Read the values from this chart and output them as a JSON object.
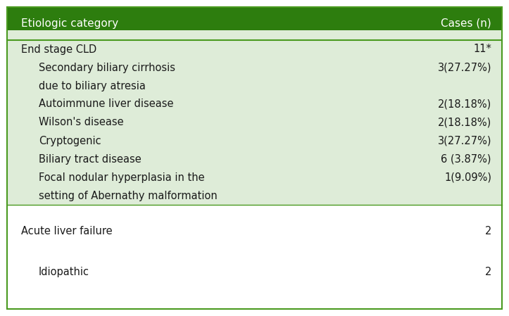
{
  "header_bg": "#2d7d0e",
  "header_text_color": "#ffffff",
  "section1_bg": "#deecd8",
  "section2_bg": "#ffffff",
  "outer_bg": "#ffffff",
  "border_color": "#4a9a20",
  "header_col1": "Etiologic category",
  "header_col2": "Cases (n)",
  "rows_section1": [
    {
      "col1": "End stage CLD",
      "col2": "11*",
      "indent": false
    },
    {
      "col1": "Secondary biliary cirrhosis",
      "col2": "3(27.27%)",
      "indent": true
    },
    {
      "col1": "due to biliary atresia",
      "col2": "",
      "indent": true
    },
    {
      "col1": "Autoimmune liver disease",
      "col2": "2(18.18%)",
      "indent": true
    },
    {
      "col1": "Wilson's disease",
      "col2": "2(18.18%)",
      "indent": true
    },
    {
      "col1": "Cryptogenic",
      "col2": "3(27.27%)",
      "indent": true
    },
    {
      "col1": "Biliary tract disease",
      "col2": "6 (3.87%)",
      "indent": true
    },
    {
      "col1": "Focal nodular hyperplasia in the",
      "col2": "1(9.09%)",
      "indent": true
    },
    {
      "col1": "setting of Abernathy malformation",
      "col2": "",
      "indent": true
    }
  ],
  "rows_section2": [
    {
      "col1": "Acute liver failure",
      "col2": "2",
      "indent": false
    },
    {
      "col1": "Idiopathic",
      "col2": "2",
      "indent": true
    }
  ],
  "font_size": 10.5,
  "header_font_size": 11
}
